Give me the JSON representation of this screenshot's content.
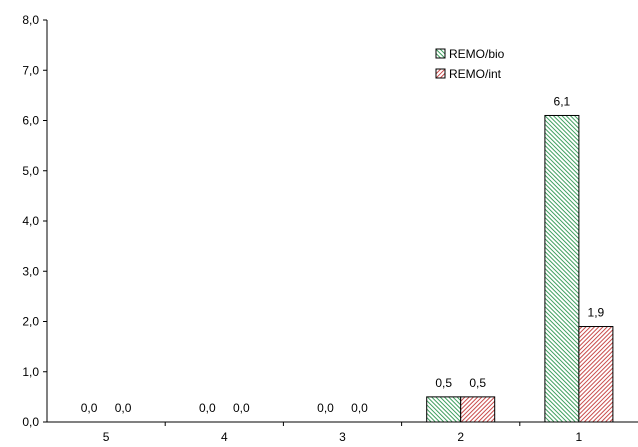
{
  "chart_data": {
    "type": "bar",
    "title": "",
    "xlabel": "",
    "ylabel": "",
    "categories": [
      "5",
      "4",
      "3",
      "2",
      "1"
    ],
    "series": [
      {
        "name": "REMO/bio",
        "values": [
          0.0,
          0.0,
          0.0,
          0.5,
          6.1
        ],
        "labels": [
          "0,0",
          "0,0",
          "0,0",
          "0,5",
          "6,1"
        ],
        "color": "#3f9f5f",
        "pattern": "diagonal-hatch"
      },
      {
        "name": "REMO/int",
        "values": [
          0.0,
          0.0,
          0.0,
          0.5,
          1.9
        ],
        "labels": [
          "0,0",
          "0,0",
          "0,0",
          "0,5",
          "1,9"
        ],
        "color": "#c84b4b",
        "pattern": "diagonal-hatch"
      }
    ],
    "ylim": [
      0,
      8
    ],
    "yticks": [
      0,
      1,
      2,
      3,
      4,
      5,
      6,
      7,
      8
    ],
    "ytick_labels": [
      "0,0",
      "1,0",
      "2,0",
      "3,0",
      "4,0",
      "5,0",
      "6,0",
      "7,0",
      "8,0"
    ],
    "grid": false,
    "legend_position": "top-right"
  }
}
